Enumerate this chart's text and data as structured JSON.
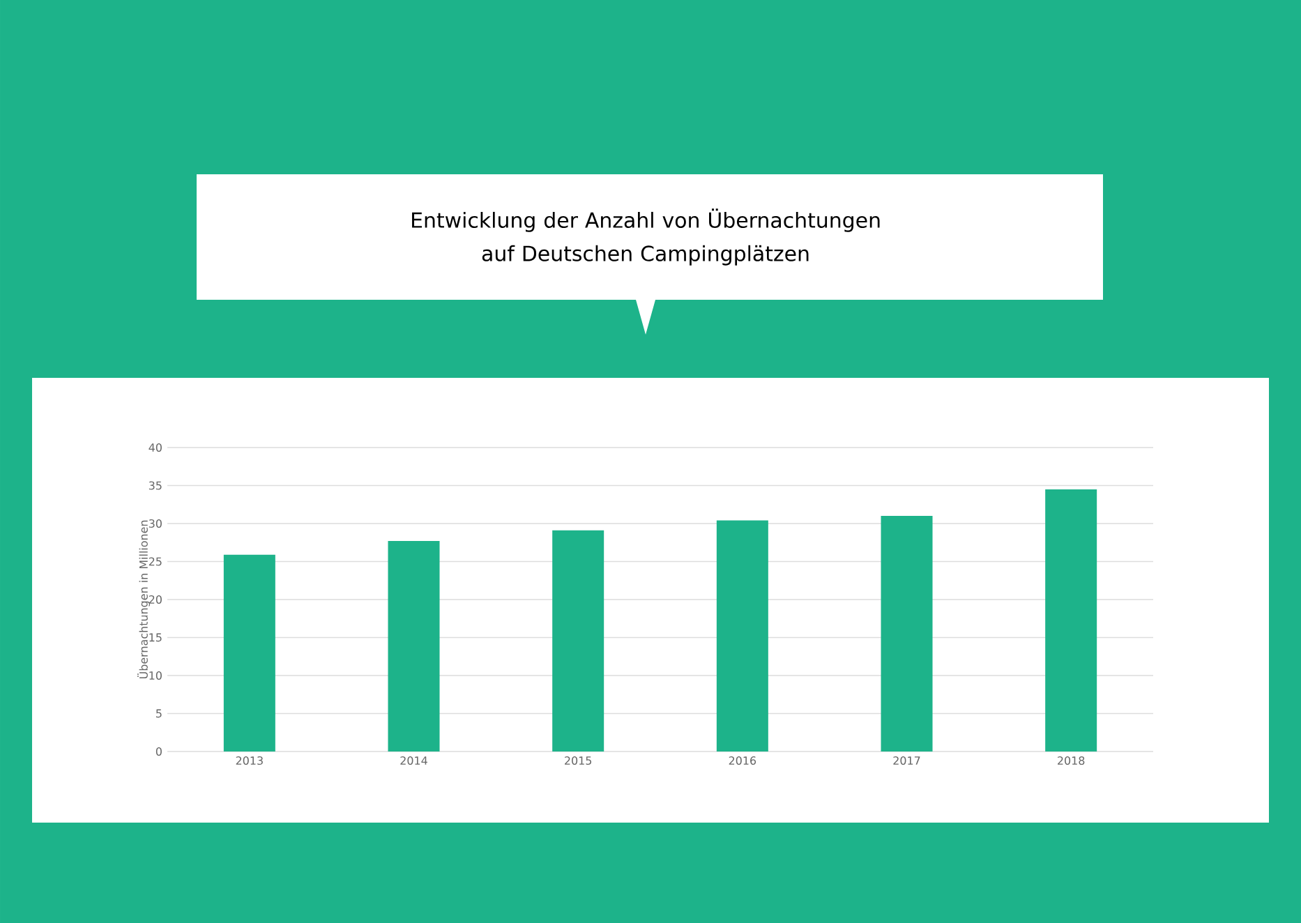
{
  "chart_data": {
    "type": "bar",
    "title": "Entwicklung der Anzahl von Übernachtungen auf Deutschen Campingplätzen",
    "ylabel": "Übernachtungen in Millionen",
    "categories": [
      "2013",
      "2014",
      "2015",
      "2016",
      "2017",
      "2018"
    ],
    "values": [
      25.9,
      27.7,
      29.1,
      30.4,
      31.0,
      34.5
    ],
    "color": "#1db38a",
    "ylim": [
      0,
      40
    ],
    "yticks": [
      0,
      5,
      10,
      15,
      20,
      25,
      30,
      35,
      40
    ],
    "grid": "y"
  }
}
